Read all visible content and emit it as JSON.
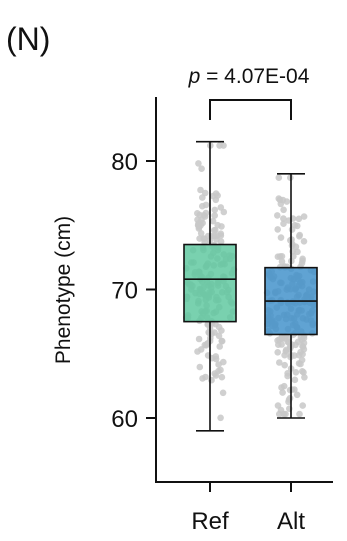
{
  "panel_label": "(N)",
  "chart_data": {
    "type": "box",
    "title": "",
    "xlabel": "",
    "ylabel": "Phenotype (cm)",
    "ylim": [
      55,
      86
    ],
    "yticks": [
      60,
      70,
      80
    ],
    "categories": [
      "Ref",
      "Alt"
    ],
    "colors": {
      "Ref": "#5cc79d",
      "Alt": "#3d8fc9",
      "points": "#c8c8c8"
    },
    "boxes": [
      {
        "name": "Ref",
        "min": 59.0,
        "q1": 67.5,
        "median": 70.8,
        "q3": 73.5,
        "max": 81.5
      },
      {
        "name": "Alt",
        "min": 60.0,
        "q1": 66.5,
        "median": 69.1,
        "q3": 71.7,
        "max": 79.0
      }
    ],
    "annotation": {
      "p_symbol": "p",
      "p_text": " = 4.07E-04"
    }
  }
}
